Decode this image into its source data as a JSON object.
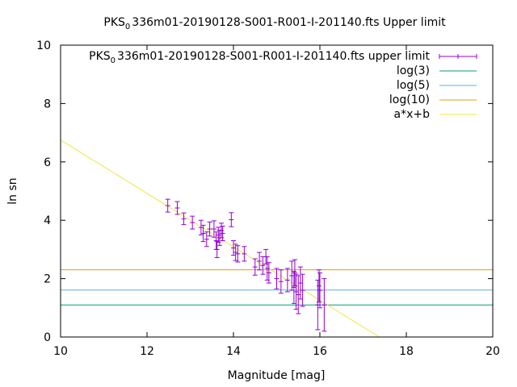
{
  "chart_data": {
    "type": "scatter",
    "title": {
      "prefix": "PKS",
      "subscript": "0",
      "suffix": "336m01-20190128-S001-R001-I-201140.fts Upper limit"
    },
    "xlabel": "Magnitude [mag]",
    "ylabel": "ln sn",
    "xlim": [
      10,
      20
    ],
    "ylim": [
      0,
      10
    ],
    "xticks": [
      10,
      12,
      14,
      16,
      18,
      20
    ],
    "yticks": [
      0,
      2,
      4,
      6,
      8,
      10
    ],
    "grid": false,
    "legend_position": "top-right",
    "series": [
      {
        "name": {
          "prefix": "PKS",
          "subscript": "0",
          "suffix": "336m01-20190128-S001-R001-I-201140.fts upper limit"
        },
        "kind": "errorbars",
        "color": "#9400D3",
        "points": [
          {
            "x": 12.48,
            "y": 4.5,
            "err": 0.22
          },
          {
            "x": 12.7,
            "y": 4.42,
            "err": 0.22
          },
          {
            "x": 12.85,
            "y": 4.05,
            "err": 0.2
          },
          {
            "x": 13.05,
            "y": 3.92,
            "err": 0.22
          },
          {
            "x": 13.25,
            "y": 3.75,
            "err": 0.25
          },
          {
            "x": 13.3,
            "y": 3.55,
            "err": 0.28
          },
          {
            "x": 13.38,
            "y": 3.35,
            "err": 0.25
          },
          {
            "x": 13.45,
            "y": 3.7,
            "err": 0.24
          },
          {
            "x": 13.55,
            "y": 3.7,
            "err": 0.28
          },
          {
            "x": 13.6,
            "y": 3.3,
            "err": 0.3
          },
          {
            "x": 13.62,
            "y": 3.0,
            "err": 0.28
          },
          {
            "x": 13.65,
            "y": 3.5,
            "err": 0.26
          },
          {
            "x": 13.68,
            "y": 3.4,
            "err": 0.26
          },
          {
            "x": 13.72,
            "y": 3.65,
            "err": 0.25
          },
          {
            "x": 13.75,
            "y": 3.55,
            "err": 0.25
          },
          {
            "x": 13.95,
            "y": 4.02,
            "err": 0.24
          },
          {
            "x": 14.0,
            "y": 3.05,
            "err": 0.25
          },
          {
            "x": 14.05,
            "y": 2.9,
            "err": 0.28
          },
          {
            "x": 14.1,
            "y": 2.85,
            "err": 0.28
          },
          {
            "x": 14.25,
            "y": 2.85,
            "err": 0.25
          },
          {
            "x": 14.5,
            "y": 2.4,
            "err": 0.28
          },
          {
            "x": 14.6,
            "y": 2.6,
            "err": 0.3
          },
          {
            "x": 14.68,
            "y": 2.45,
            "err": 0.3
          },
          {
            "x": 14.75,
            "y": 2.75,
            "err": 0.25
          },
          {
            "x": 14.78,
            "y": 2.35,
            "err": 0.4
          },
          {
            "x": 14.82,
            "y": 2.2,
            "err": 0.35
          },
          {
            "x": 15.0,
            "y": 2.0,
            "err": 0.35
          },
          {
            "x": 15.1,
            "y": 1.9,
            "err": 0.4
          },
          {
            "x": 15.25,
            "y": 1.95,
            "err": 0.4
          },
          {
            "x": 15.35,
            "y": 2.1,
            "err": 0.5
          },
          {
            "x": 15.4,
            "y": 1.7,
            "err": 0.55
          },
          {
            "x": 15.42,
            "y": 2.2,
            "err": 0.45
          },
          {
            "x": 15.45,
            "y": 1.55,
            "err": 0.6
          },
          {
            "x": 15.5,
            "y": 1.45,
            "err": 0.65
          },
          {
            "x": 15.55,
            "y": 1.85,
            "err": 0.55
          },
          {
            "x": 15.6,
            "y": 1.6,
            "err": 0.55
          },
          {
            "x": 15.95,
            "y": 1.1,
            "err": 0.85
          },
          {
            "x": 15.98,
            "y": 1.75,
            "err": 0.55
          },
          {
            "x": 16.0,
            "y": 1.6,
            "err": 0.6
          },
          {
            "x": 16.1,
            "y": 1.1,
            "err": 0.9
          }
        ]
      },
      {
        "name": "log(3)",
        "kind": "hline",
        "value": 1.0986,
        "color": "#009E73"
      },
      {
        "name": "log(5)",
        "kind": "hline",
        "value": 1.6094,
        "color": "#56B4E9"
      },
      {
        "name": "log(10)",
        "kind": "hline",
        "value": 2.3026,
        "color": "#E69F00"
      },
      {
        "name": "a*x+b",
        "kind": "fit",
        "slope": -0.915,
        "intercept": 15.9,
        "color": "#F0E442"
      }
    ]
  }
}
